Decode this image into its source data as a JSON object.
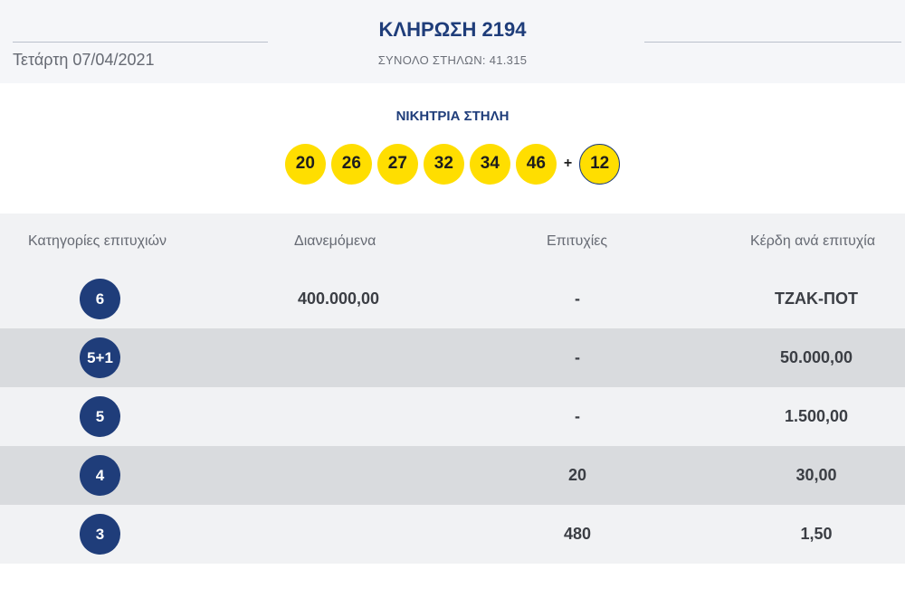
{
  "header": {
    "date": "Τετάρτη 07/04/2021",
    "draw_title": "ΚΛΗΡΩΣΗ 2194",
    "total_columns": "ΣΥΝΟΛΟ ΣΤΗΛΩΝ: 41.315"
  },
  "winning": {
    "label": "ΝΙΚΗΤΡΙΑ ΣΤΗΛΗ",
    "numbers": [
      "20",
      "26",
      "27",
      "32",
      "34",
      "46"
    ],
    "plus": "+",
    "joker": "12"
  },
  "table": {
    "headers": {
      "category": "Κατηγορίες επιτυχιών",
      "distributed": "Διανεμόμενα",
      "winners": "Επιτυχίες",
      "prize": "Κέρδη ανά επιτυχία"
    },
    "rows": [
      {
        "category": "6",
        "distributed": "400.000,00",
        "winners": "-",
        "prize": "ΤΖΑΚ-ΠΟΤ"
      },
      {
        "category": "5+1",
        "distributed": "",
        "winners": "-",
        "prize": "50.000,00"
      },
      {
        "category": "5",
        "distributed": "",
        "winners": "-",
        "prize": "1.500,00"
      },
      {
        "category": "4",
        "distributed": "",
        "winners": "20",
        "prize": "30,00"
      },
      {
        "category": "3",
        "distributed": "",
        "winners": "480",
        "prize": "1,50"
      }
    ]
  },
  "colors": {
    "brand_blue": "#1f3d7a",
    "ball_yellow": "#ffde00"
  }
}
